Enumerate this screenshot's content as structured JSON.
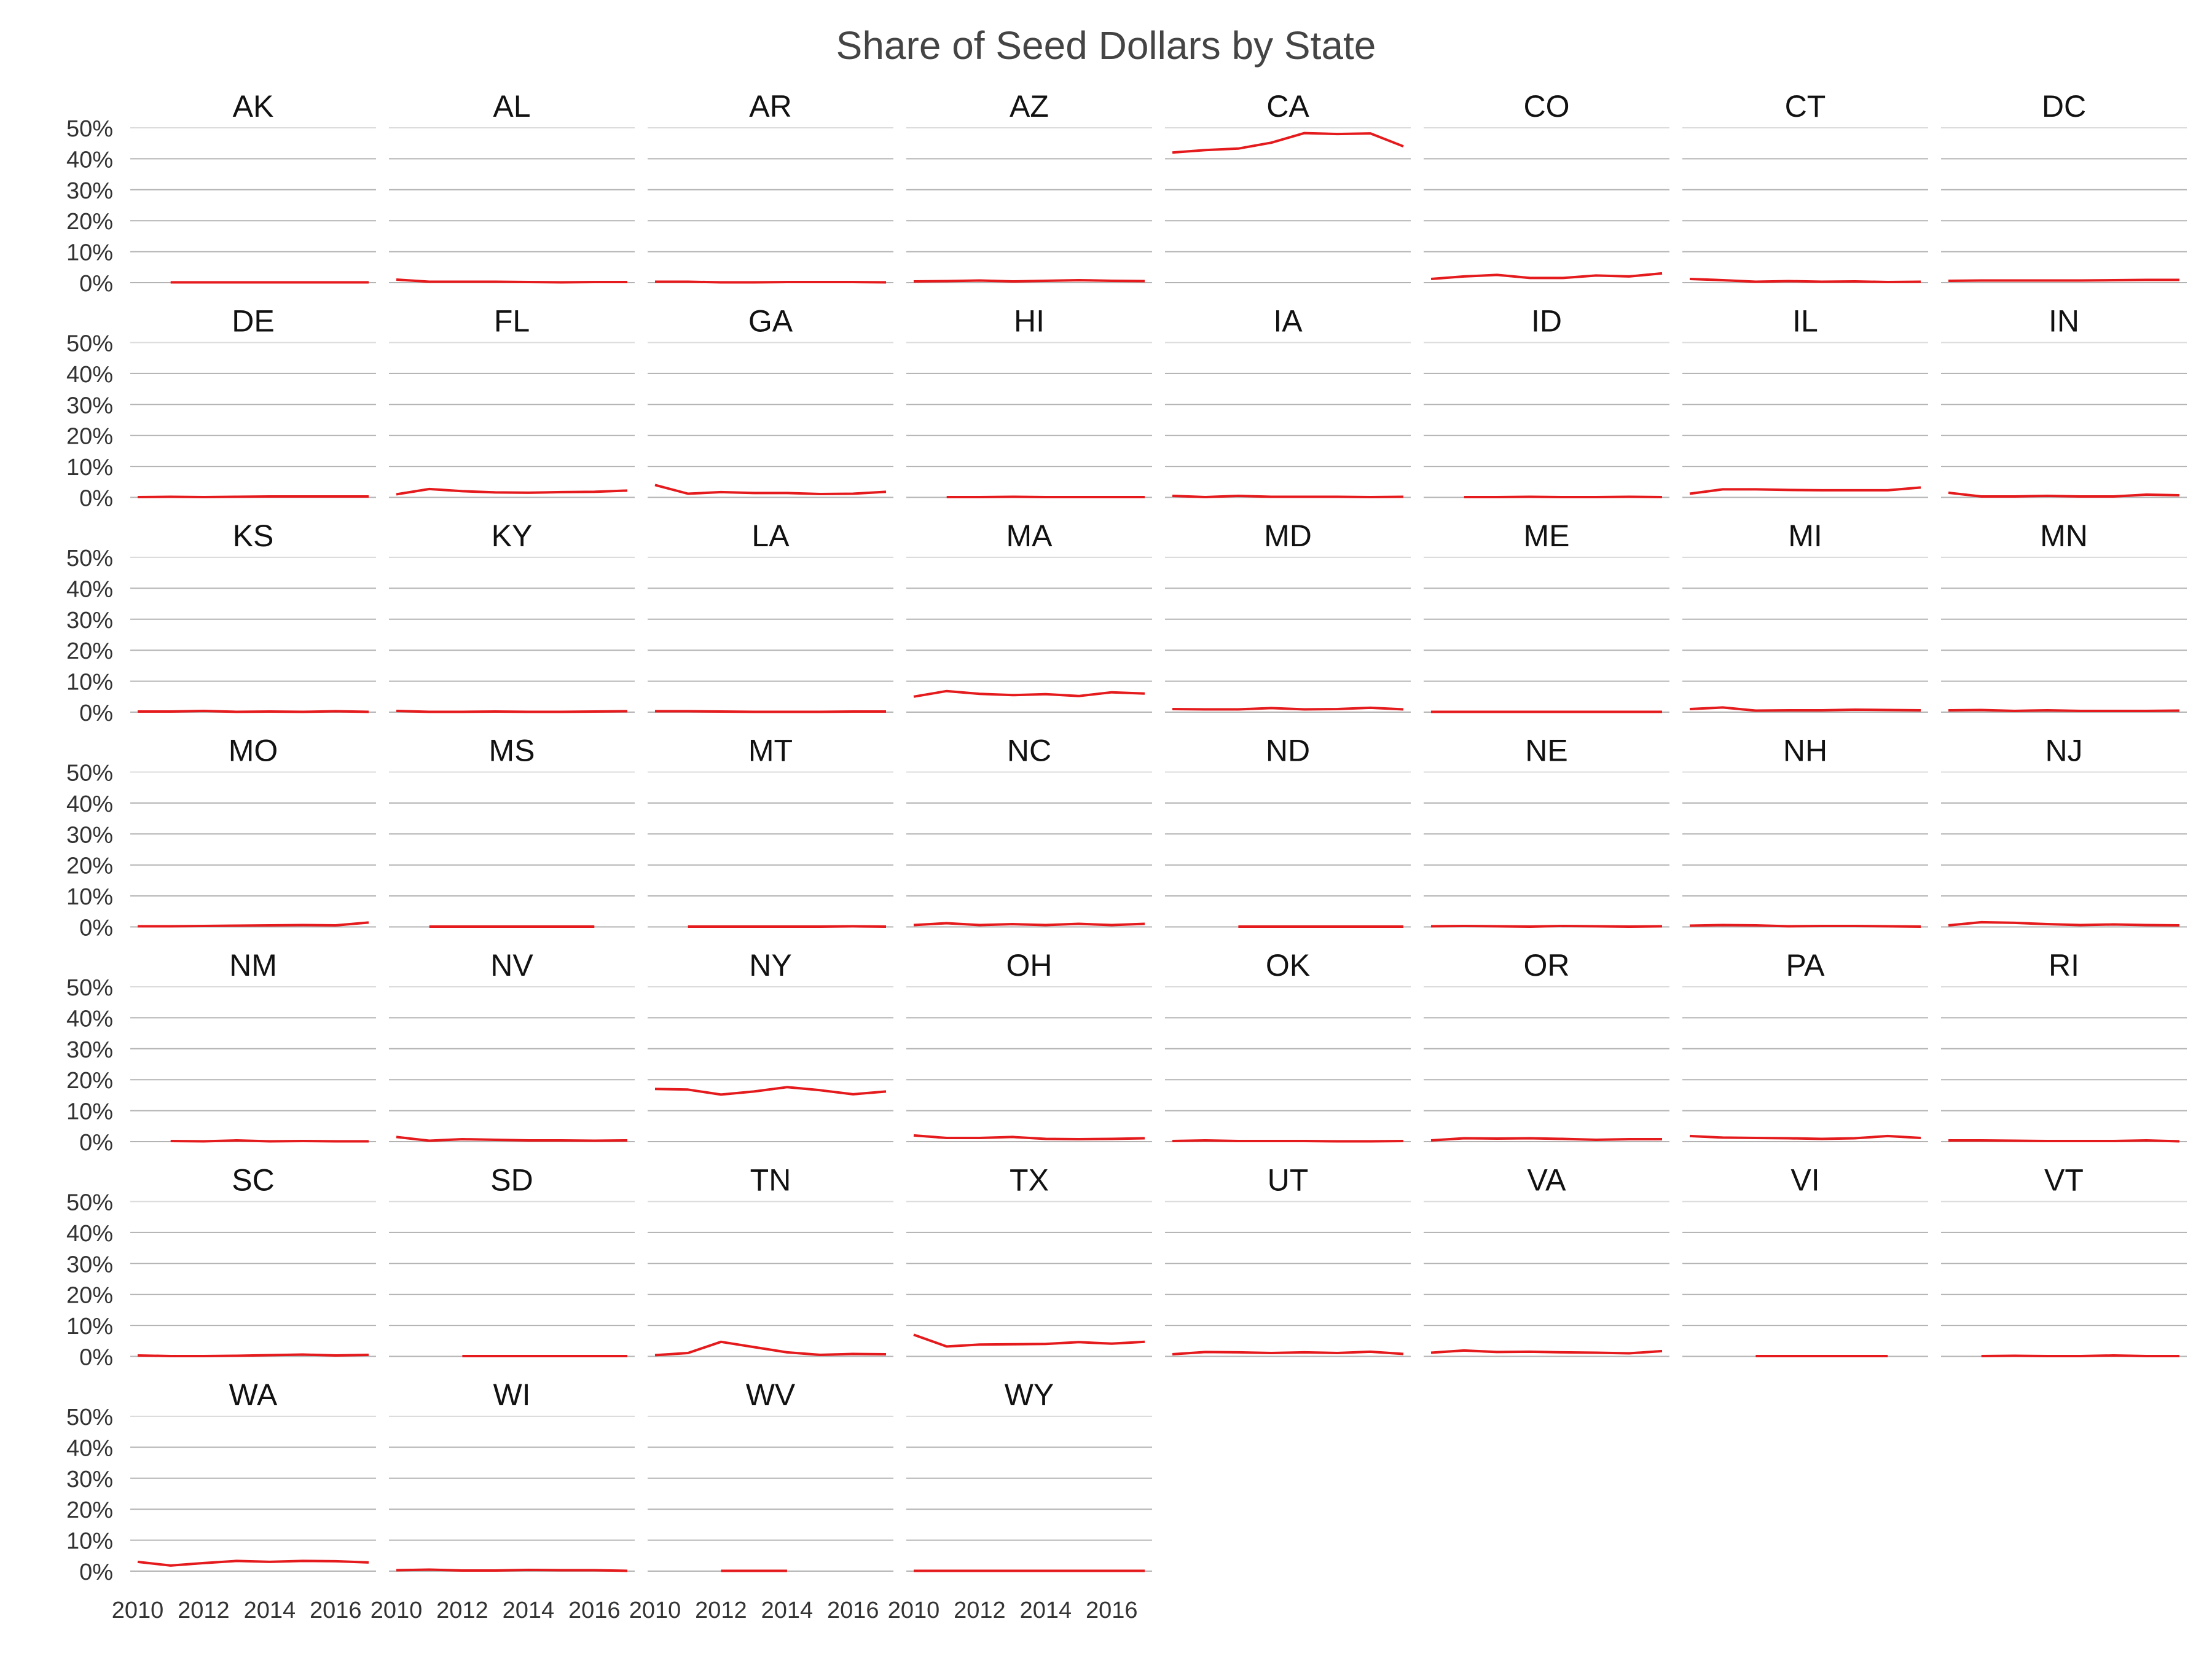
{
  "chart_data": {
    "type": "line",
    "title": "Share of Seed Dollars by State",
    "x_ticks": [
      2010,
      2012,
      2014,
      2016
    ],
    "y_ticks": [
      "0%",
      "10%",
      "20%",
      "30%",
      "40%",
      "50%"
    ],
    "ylim": [
      0,
      0.5
    ],
    "xlim": [
      2010,
      2017
    ],
    "grid": true,
    "line_color": "#e41a1c",
    "grid_color": "#b3b3b3",
    "panels": [
      {
        "name": "AK",
        "x": [
          2011,
          2012,
          2013,
          2014,
          2015,
          2016,
          2017
        ],
        "y": [
          0.001,
          0.001,
          0.001,
          0.001,
          0.001,
          0.001,
          0.001
        ]
      },
      {
        "name": "AL",
        "x": [
          2010,
          2011,
          2012,
          2013,
          2014,
          2015,
          2016,
          2017
        ],
        "y": [
          0.01,
          0.003,
          0.003,
          0.003,
          0.002,
          0.001,
          0.002,
          0.002
        ]
      },
      {
        "name": "AR",
        "x": [
          2010,
          2011,
          2012,
          2013,
          2014,
          2015,
          2016,
          2017
        ],
        "y": [
          0.003,
          0.003,
          0.001,
          0.001,
          0.002,
          0.002,
          0.002,
          0.001
        ]
      },
      {
        "name": "AZ",
        "x": [
          2010,
          2011,
          2012,
          2013,
          2014,
          2015,
          2016,
          2017
        ],
        "y": [
          0.004,
          0.005,
          0.007,
          0.004,
          0.006,
          0.008,
          0.006,
          0.005
        ]
      },
      {
        "name": "CA",
        "x": [
          2010,
          2011,
          2012,
          2013,
          2014,
          2015,
          2016,
          2017
        ],
        "y": [
          0.42,
          0.428,
          0.433,
          0.452,
          0.483,
          0.48,
          0.482,
          0.44
        ]
      },
      {
        "name": "CO",
        "x": [
          2010,
          2011,
          2012,
          2013,
          2014,
          2015,
          2016,
          2017
        ],
        "y": [
          0.012,
          0.02,
          0.025,
          0.015,
          0.015,
          0.023,
          0.02,
          0.03
        ]
      },
      {
        "name": "CT",
        "x": [
          2010,
          2011,
          2012,
          2013,
          2014,
          2015,
          2016,
          2017
        ],
        "y": [
          0.012,
          0.008,
          0.003,
          0.005,
          0.003,
          0.004,
          0.002,
          0.003
        ]
      },
      {
        "name": "DC",
        "x": [
          2010,
          2011,
          2012,
          2013,
          2014,
          2015,
          2016,
          2017
        ],
        "y": [
          0.006,
          0.007,
          0.007,
          0.007,
          0.007,
          0.008,
          0.009,
          0.009
        ]
      },
      {
        "name": "DE",
        "x": [
          2010,
          2011,
          2012,
          2013,
          2014,
          2015,
          2016,
          2017
        ],
        "y": [
          0.001,
          0.002,
          0.001,
          0.002,
          0.003,
          0.003,
          0.003,
          0.003
        ]
      },
      {
        "name": "FL",
        "x": [
          2010,
          2011,
          2012,
          2013,
          2014,
          2015,
          2016,
          2017
        ],
        "y": [
          0.01,
          0.027,
          0.02,
          0.016,
          0.015,
          0.017,
          0.018,
          0.022
        ]
      },
      {
        "name": "GA",
        "x": [
          2010,
          2011,
          2012,
          2013,
          2014,
          2015,
          2016,
          2017
        ],
        "y": [
          0.04,
          0.012,
          0.017,
          0.014,
          0.014,
          0.011,
          0.012,
          0.018
        ]
      },
      {
        "name": "HI",
        "x": [
          2011,
          2012,
          2013,
          2014,
          2015,
          2016,
          2017
        ],
        "y": [
          0.001,
          0.001,
          0.002,
          0.001,
          0.001,
          0.001,
          0.001
        ]
      },
      {
        "name": "IA",
        "x": [
          2010,
          2011,
          2012,
          2013,
          2014,
          2015,
          2016,
          2017
        ],
        "y": [
          0.005,
          0.001,
          0.005,
          0.002,
          0.002,
          0.002,
          0.001,
          0.002
        ]
      },
      {
        "name": "ID",
        "x": [
          2011,
          2012,
          2013,
          2014,
          2015,
          2016,
          2017
        ],
        "y": [
          0.001,
          0.001,
          0.002,
          0.001,
          0.001,
          0.002,
          0.001
        ]
      },
      {
        "name": "IL",
        "x": [
          2010,
          2011,
          2012,
          2013,
          2014,
          2015,
          2016,
          2017
        ],
        "y": [
          0.012,
          0.026,
          0.026,
          0.024,
          0.023,
          0.023,
          0.023,
          0.032
        ]
      },
      {
        "name": "IN",
        "x": [
          2010,
          2011,
          2012,
          2013,
          2014,
          2015,
          2016,
          2017
        ],
        "y": [
          0.015,
          0.003,
          0.003,
          0.005,
          0.003,
          0.003,
          0.009,
          0.007
        ]
      },
      {
        "name": "KS",
        "x": [
          2010,
          2011,
          2012,
          2013,
          2014,
          2015,
          2016,
          2017
        ],
        "y": [
          0.002,
          0.002,
          0.004,
          0.001,
          0.002,
          0.001,
          0.003,
          0.001
        ]
      },
      {
        "name": "KY",
        "x": [
          2010,
          2011,
          2012,
          2013,
          2014,
          2015,
          2016,
          2017
        ],
        "y": [
          0.004,
          0.001,
          0.001,
          0.002,
          0.001,
          0.001,
          0.002,
          0.003
        ]
      },
      {
        "name": "LA",
        "x": [
          2010,
          2011,
          2012,
          2013,
          2014,
          2015,
          2016,
          2017
        ],
        "y": [
          0.003,
          0.003,
          0.002,
          0.001,
          0.001,
          0.001,
          0.002,
          0.002
        ]
      },
      {
        "name": "MA",
        "x": [
          2010,
          2011,
          2012,
          2013,
          2014,
          2015,
          2016,
          2017
        ],
        "y": [
          0.05,
          0.068,
          0.059,
          0.055,
          0.058,
          0.052,
          0.064,
          0.06
        ]
      },
      {
        "name": "MD",
        "x": [
          2010,
          2011,
          2012,
          2013,
          2014,
          2015,
          2016,
          2017
        ],
        "y": [
          0.01,
          0.009,
          0.009,
          0.013,
          0.009,
          0.01,
          0.014,
          0.009
        ]
      },
      {
        "name": "ME",
        "x": [
          2010,
          2011,
          2012,
          2013,
          2014,
          2015,
          2016,
          2017
        ],
        "y": [
          0.001,
          0.001,
          0.001,
          0.001,
          0.001,
          0.001,
          0.001,
          0.001
        ]
      },
      {
        "name": "MI",
        "x": [
          2010,
          2011,
          2012,
          2013,
          2014,
          2015,
          2016,
          2017
        ],
        "y": [
          0.01,
          0.015,
          0.005,
          0.006,
          0.006,
          0.008,
          0.007,
          0.006
        ]
      },
      {
        "name": "MN",
        "x": [
          2010,
          2011,
          2012,
          2013,
          2014,
          2015,
          2016,
          2017
        ],
        "y": [
          0.006,
          0.007,
          0.004,
          0.006,
          0.004,
          0.004,
          0.004,
          0.005
        ]
      },
      {
        "name": "MO",
        "x": [
          2010,
          2011,
          2012,
          2013,
          2014,
          2015,
          2016,
          2017
        ],
        "y": [
          0.002,
          0.002,
          0.003,
          0.004,
          0.005,
          0.006,
          0.005,
          0.014
        ]
      },
      {
        "name": "MS",
        "x": [
          2011,
          2012,
          2013,
          2014,
          2015,
          2016
        ],
        "y": [
          0.001,
          0.001,
          0.001,
          0.001,
          0.001,
          0.001
        ]
      },
      {
        "name": "MT",
        "x": [
          2011,
          2012,
          2013,
          2014,
          2015,
          2016,
          2017
        ],
        "y": [
          0.001,
          0.001,
          0.001,
          0.001,
          0.001,
          0.002,
          0.001
        ]
      },
      {
        "name": "NC",
        "x": [
          2010,
          2011,
          2012,
          2013,
          2014,
          2015,
          2016,
          2017
        ],
        "y": [
          0.006,
          0.012,
          0.006,
          0.009,
          0.006,
          0.01,
          0.006,
          0.01
        ]
      },
      {
        "name": "ND",
        "x": [
          2012,
          2013,
          2014,
          2015,
          2016,
          2017
        ],
        "y": [
          0.001,
          0.001,
          0.001,
          0.001,
          0.001,
          0.001
        ]
      },
      {
        "name": "NE",
        "x": [
          2010,
          2011,
          2012,
          2013,
          2014,
          2015,
          2016,
          2017
        ],
        "y": [
          0.002,
          0.003,
          0.002,
          0.001,
          0.003,
          0.002,
          0.001,
          0.002
        ]
      },
      {
        "name": "NH",
        "x": [
          2010,
          2011,
          2012,
          2013,
          2014,
          2015,
          2016,
          2017
        ],
        "y": [
          0.004,
          0.006,
          0.005,
          0.002,
          0.003,
          0.003,
          0.002,
          0.001
        ]
      },
      {
        "name": "NJ",
        "x": [
          2010,
          2011,
          2012,
          2013,
          2014,
          2015,
          2016,
          2017
        ],
        "y": [
          0.005,
          0.015,
          0.013,
          0.009,
          0.006,
          0.008,
          0.006,
          0.005
        ]
      },
      {
        "name": "NM",
        "x": [
          2011,
          2012,
          2013,
          2014,
          2015,
          2016,
          2017
        ],
        "y": [
          0.002,
          0.001,
          0.004,
          0.001,
          0.002,
          0.001,
          0.001
        ]
      },
      {
        "name": "NV",
        "x": [
          2010,
          2011,
          2012,
          2013,
          2014,
          2015,
          2016,
          2017
        ],
        "y": [
          0.015,
          0.003,
          0.008,
          0.006,
          0.004,
          0.004,
          0.003,
          0.004
        ]
      },
      {
        "name": "NY",
        "x": [
          2010,
          2011,
          2012,
          2013,
          2014,
          2015,
          2016,
          2017
        ],
        "y": [
          0.17,
          0.168,
          0.152,
          0.162,
          0.176,
          0.166,
          0.153,
          0.162
        ]
      },
      {
        "name": "OH",
        "x": [
          2010,
          2011,
          2012,
          2013,
          2014,
          2015,
          2016,
          2017
        ],
        "y": [
          0.02,
          0.012,
          0.012,
          0.015,
          0.009,
          0.008,
          0.009,
          0.011
        ]
      },
      {
        "name": "OK",
        "x": [
          2010,
          2011,
          2012,
          2013,
          2014,
          2015,
          2016,
          2017
        ],
        "y": [
          0.002,
          0.004,
          0.002,
          0.002,
          0.002,
          0.001,
          0.001,
          0.002
        ]
      },
      {
        "name": "OR",
        "x": [
          2010,
          2011,
          2012,
          2013,
          2014,
          2015,
          2016,
          2017
        ],
        "y": [
          0.004,
          0.011,
          0.01,
          0.011,
          0.009,
          0.006,
          0.008,
          0.008
        ]
      },
      {
        "name": "PA",
        "x": [
          2010,
          2011,
          2012,
          2013,
          2014,
          2015,
          2016,
          2017
        ],
        "y": [
          0.018,
          0.013,
          0.012,
          0.011,
          0.009,
          0.011,
          0.018,
          0.012
        ]
      },
      {
        "name": "RI",
        "x": [
          2010,
          2011,
          2012,
          2013,
          2014,
          2015,
          2016,
          2017
        ],
        "y": [
          0.004,
          0.004,
          0.003,
          0.002,
          0.002,
          0.002,
          0.004,
          0.001
        ]
      },
      {
        "name": "SC",
        "x": [
          2010,
          2011,
          2012,
          2013,
          2014,
          2015,
          2016,
          2017
        ],
        "y": [
          0.003,
          0.001,
          0.001,
          0.002,
          0.004,
          0.006,
          0.003,
          0.005
        ]
      },
      {
        "name": "SD",
        "x": [
          2012,
          2013,
          2014,
          2015,
          2016,
          2017
        ],
        "y": [
          0.001,
          0.001,
          0.001,
          0.001,
          0.001,
          0.001
        ]
      },
      {
        "name": "TN",
        "x": [
          2010,
          2011,
          2012,
          2013,
          2014,
          2015,
          2016,
          2017
        ],
        "y": [
          0.004,
          0.011,
          0.047,
          0.03,
          0.013,
          0.005,
          0.008,
          0.007
        ]
      },
      {
        "name": "TX",
        "x": [
          2010,
          2011,
          2012,
          2013,
          2014,
          2015,
          2016,
          2017
        ],
        "y": [
          0.07,
          0.032,
          0.038,
          0.039,
          0.04,
          0.046,
          0.041,
          0.047
        ]
      },
      {
        "name": "UT",
        "x": [
          2010,
          2011,
          2012,
          2013,
          2014,
          2015,
          2016,
          2017
        ],
        "y": [
          0.007,
          0.014,
          0.013,
          0.011,
          0.013,
          0.011,
          0.015,
          0.008
        ]
      },
      {
        "name": "VA",
        "x": [
          2010,
          2011,
          2012,
          2013,
          2014,
          2015,
          2016,
          2017
        ],
        "y": [
          0.012,
          0.019,
          0.014,
          0.015,
          0.013,
          0.012,
          0.01,
          0.017
        ]
      },
      {
        "name": "VI",
        "x": [
          2012,
          2013,
          2014,
          2015,
          2016
        ],
        "y": [
          0.001,
          0.001,
          0.001,
          0.001,
          0.001
        ]
      },
      {
        "name": "VT",
        "x": [
          2011,
          2012,
          2013,
          2014,
          2015,
          2016,
          2017
        ],
        "y": [
          0.001,
          0.002,
          0.001,
          0.001,
          0.003,
          0.001,
          0.001
        ]
      },
      {
        "name": "WA",
        "x": [
          2010,
          2011,
          2012,
          2013,
          2014,
          2015,
          2016,
          2017
        ],
        "y": [
          0.03,
          0.018,
          0.026,
          0.033,
          0.03,
          0.033,
          0.032,
          0.028
        ]
      },
      {
        "name": "WI",
        "x": [
          2010,
          2011,
          2012,
          2013,
          2014,
          2015,
          2016,
          2017
        ],
        "y": [
          0.003,
          0.005,
          0.002,
          0.002,
          0.004,
          0.003,
          0.003,
          0.001
        ]
      },
      {
        "name": "WV",
        "x": [
          2012,
          2013,
          2014
        ],
        "y": [
          0.001,
          0.001,
          0.001
        ]
      },
      {
        "name": "WY",
        "x": [
          2010,
          2011,
          2012,
          2013,
          2014,
          2015,
          2016,
          2017
        ],
        "y": [
          0.001,
          0.001,
          0.001,
          0.001,
          0.001,
          0.001,
          0.001,
          0.001
        ]
      }
    ]
  }
}
